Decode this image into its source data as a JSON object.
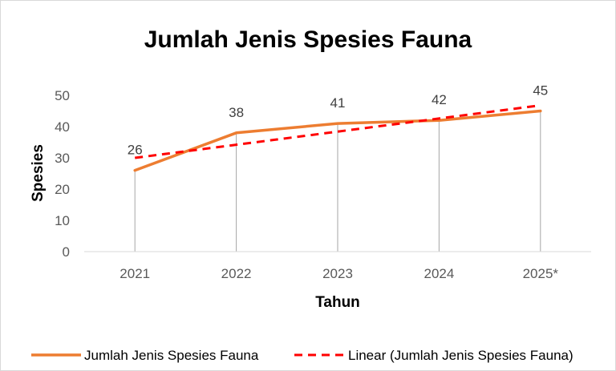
{
  "chart_data": {
    "type": "line",
    "title": "Jumlah Jenis Spesies Fauna",
    "xlabel": "Tahun",
    "ylabel": "Spesies",
    "categories": [
      "2021",
      "2022",
      "2023",
      "2024",
      "2025*"
    ],
    "ylim": [
      0,
      50
    ],
    "yticks": [
      0,
      10,
      20,
      30,
      40,
      50
    ],
    "grid": false,
    "drop_lines": true,
    "legend_position": "bottom",
    "series": [
      {
        "name": "Jumlah Jenis Spesies Fauna",
        "values": [
          26,
          38,
          41,
          42,
          45
        ],
        "color": "#ed7d31",
        "style": "solid",
        "data_labels": [
          "26",
          "38",
          "41",
          "42",
          "45"
        ]
      },
      {
        "name": "Linear (Jumlah Jenis Spesies Fauna)",
        "values": [
          30.0,
          34.2,
          38.4,
          42.6,
          46.8
        ],
        "color": "#ff0000",
        "style": "dashed",
        "trendline": true
      }
    ]
  }
}
